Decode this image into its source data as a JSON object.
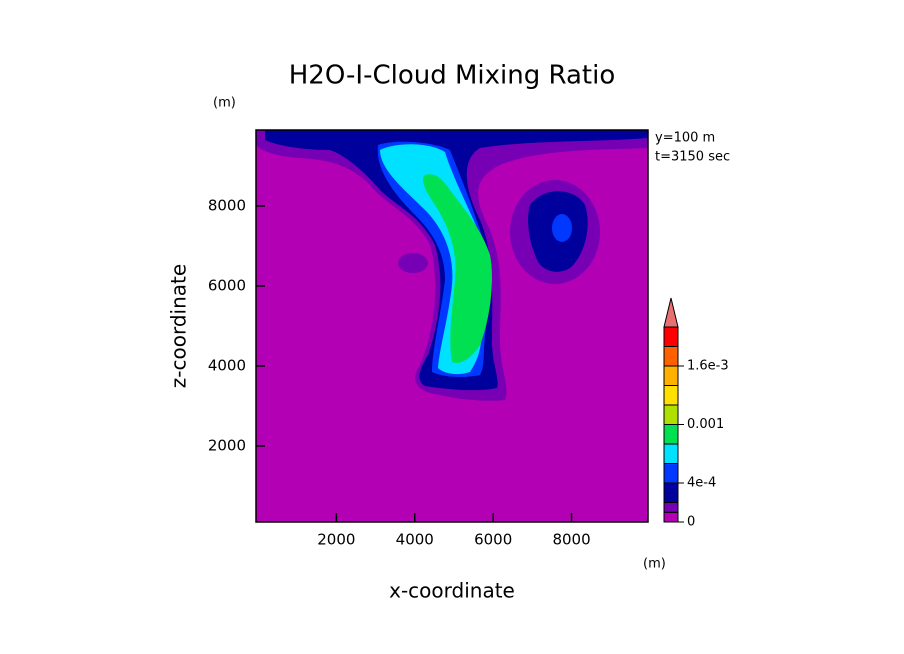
{
  "chart_data": {
    "type": "contour",
    "title": "H2O-I-Cloud Mixing Ratio",
    "x_label": "x-coordinate",
    "y_label": "z-coordinate",
    "x_unit": "(m)",
    "y_unit": "(m)",
    "annotations": [
      "y=100 m",
      "t=3150 sec"
    ],
    "xlim": [
      -50,
      9950
    ],
    "ylim": [
      100,
      9900
    ],
    "xticks": [
      2000,
      4000,
      6000,
      8000
    ],
    "yticks": [
      2000,
      4000,
      6000,
      8000
    ],
    "colorbar": {
      "levels": [
        0,
        0.0001,
        0.0002,
        0.0004,
        0.0006,
        0.0008,
        0.001,
        0.0012,
        0.0014,
        0.0016,
        0.0018,
        0.002
      ],
      "colors": [
        "#b400b4",
        "#7800b4",
        "#00009c",
        "#0038ff",
        "#00e0ff",
        "#00e050",
        "#b0e000",
        "#ffe000",
        "#ffb000",
        "#ff6000",
        "#ff0000"
      ],
      "extend_color": "#e87070",
      "ticks": [
        0,
        {
          "value": 0.0004,
          "label": "4e-4"
        },
        0.001,
        {
          "value": 0.0016,
          "label": "1.6e-3"
        }
      ]
    }
  }
}
